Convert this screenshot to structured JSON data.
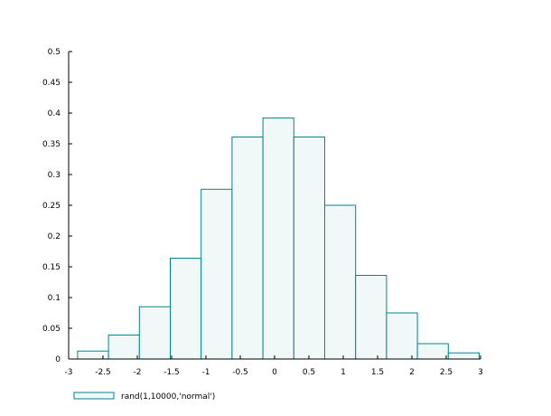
{
  "chart_data": {
    "type": "bar",
    "title": "",
    "xlabel": "",
    "ylabel": "",
    "xlim": [
      -3,
      3
    ],
    "ylim": [
      0,
      0.5
    ],
    "x_ticks": [
      -3,
      -2.5,
      -2,
      -1.5,
      -1,
      -0.5,
      0,
      0.5,
      1,
      1.5,
      2,
      2.5,
      3
    ],
    "x_tick_labels": [
      "-3",
      "-2.5",
      "-2",
      "-1.5",
      "-1",
      "-0.5",
      "0",
      "0.5",
      "1",
      "1.5",
      "2",
      "2.5",
      "3"
    ],
    "y_ticks": [
      0,
      0.05,
      0.1,
      0.15,
      0.2,
      0.25,
      0.3,
      0.35,
      0.4,
      0.45,
      0.5
    ],
    "y_tick_labels": [
      "0",
      "0.05",
      "0.1",
      "0.15",
      "0.2",
      "0.25",
      "0.3",
      "0.35",
      "0.4",
      "0.45",
      "0.5"
    ],
    "bins": [
      {
        "x0": -2.87,
        "x1": -2.42,
        "value": 0.013
      },
      {
        "x0": -2.42,
        "x1": -1.97,
        "value": 0.039
      },
      {
        "x0": -1.97,
        "x1": -1.52,
        "value": 0.085
      },
      {
        "x0": -1.52,
        "x1": -1.07,
        "value": 0.164
      },
      {
        "x0": -1.07,
        "x1": -0.62,
        "value": 0.276
      },
      {
        "x0": -0.62,
        "x1": -0.17,
        "value": 0.361
      },
      {
        "x0": -0.17,
        "x1": 0.28,
        "value": 0.392
      },
      {
        "x0": 0.28,
        "x1": 0.73,
        "value": 0.361
      },
      {
        "x0": 0.73,
        "x1": 1.18,
        "value": 0.25
      },
      {
        "x0": 1.18,
        "x1": 1.63,
        "value": 0.136
      },
      {
        "x0": 1.63,
        "x1": 2.08,
        "value": 0.075
      },
      {
        "x0": 2.08,
        "x1": 2.53,
        "value": 0.025
      },
      {
        "x0": 2.53,
        "x1": 2.98,
        "value": 0.01
      }
    ],
    "series": [
      {
        "name": "rand(1,10000,'normal')"
      }
    ],
    "legend_position": "bottom-left",
    "grid": false,
    "colors": {
      "bar_stroke": "#00868b",
      "bar_fill": "#f0f8f8",
      "axis": "#000000"
    }
  }
}
